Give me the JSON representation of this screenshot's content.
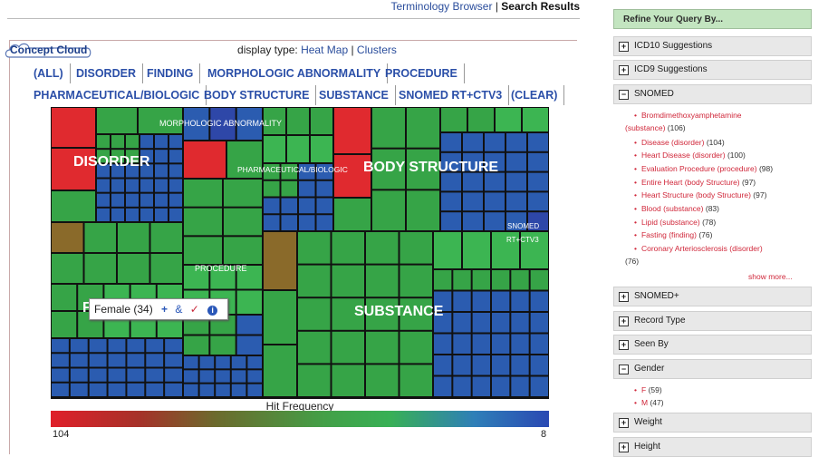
{
  "top_nav": {
    "terminology_browser": "Terminology Browser",
    "separator": " | ",
    "search_results": "Search Results"
  },
  "cloud_label": "Concept Cloud",
  "display_type": {
    "label": "display type:",
    "heat_map": "Heat Map",
    "sep": " | ",
    "clusters": "Clusters"
  },
  "filters_row1": [
    "(ALL)",
    "DISORDER",
    "FINDING",
    "MORPHOLOGIC ABNORMALITY",
    "PROCEDURE"
  ],
  "filters_row2": [
    "PHARMACEUTICAL/BIOLOGIC",
    "BODY STRUCTURE",
    "SUBSTANCE",
    "SNOMED RT+CTV3",
    "(CLEAR)"
  ],
  "treemap_labels": {
    "disorder": "DISORDER",
    "morphologic": "MORPHOLOGIC ABNORMALITY",
    "pharmaceutical": "PHARMACEUTICAL/BIOLOGIC",
    "body_structure": "BODY STRUCTURE",
    "snomed_line1": "SNOMED",
    "snomed_line2": "RT+CTV3",
    "procedure": "PROCEDURE",
    "finding_initial": "F",
    "substance": "SUBSTANCE"
  },
  "tooltip": {
    "label": "Female (34)",
    "plus": "+",
    "amp": "&",
    "check": "✓",
    "info": "i"
  },
  "hit_frequency": {
    "title": "Hit Frequency",
    "min": "104",
    "max": "8"
  },
  "sidebar": {
    "header": "Refine Your Query By...",
    "sections": [
      {
        "title": "ICD10 Suggestions",
        "toggle": "+"
      },
      {
        "title": "ICD9 Suggestions",
        "toggle": "+"
      },
      {
        "title": "SNOMED",
        "toggle": "−"
      },
      {
        "title": "SNOMED+",
        "toggle": "+"
      },
      {
        "title": "Record Type",
        "toggle": "+"
      },
      {
        "title": "Seen By",
        "toggle": "+"
      },
      {
        "title": "Gender",
        "toggle": "−"
      },
      {
        "title": "Weight",
        "toggle": "+"
      },
      {
        "title": "Height",
        "toggle": "+"
      }
    ],
    "snomed_items": [
      {
        "label": "Bromdimethoxyamphetamine",
        "label2": "(substance)",
        "count": "(106)"
      },
      {
        "label": "Disease (disorder)",
        "count": "(104)"
      },
      {
        "label": "Heart Disease (disorder)",
        "count": "(100)"
      },
      {
        "label": "Evaluation Procedure (procedure)",
        "count": "(98)"
      },
      {
        "label": "Entire Heart (body Structure)",
        "count": "(97)"
      },
      {
        "label": "Heart Structure (body Structure)",
        "count": "(97)"
      },
      {
        "label": "Blood (substance)",
        "count": "(83)"
      },
      {
        "label": "Lipid (substance)",
        "count": "(78)"
      },
      {
        "label": "Fasting (finding)",
        "count": "(76)"
      },
      {
        "label": "Coronary Arteriosclerosis (disorder)",
        "count": "(76)"
      }
    ],
    "show_more": "show more...",
    "gender_items": [
      {
        "label": "F",
        "count": "(59)"
      },
      {
        "label": "M",
        "count": "(47)"
      }
    ]
  }
}
